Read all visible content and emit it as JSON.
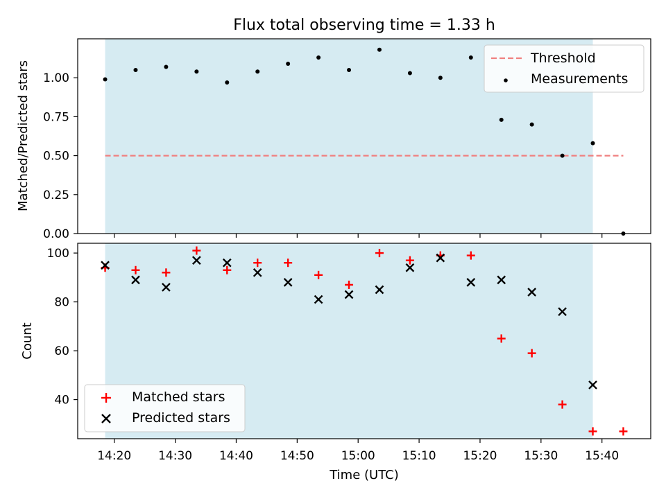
{
  "chart_data": [
    {
      "type": "scatter",
      "title": "Flux total observing time = 1.33 h",
      "xlabel": "",
      "ylabel": "Matched/Predicted stars",
      "ylim": [
        0,
        1.25
      ],
      "y_ticks": [
        "0.00",
        "0.25",
        "0.50",
        "0.75",
        "1.00"
      ],
      "x_tick_labels_shown": false,
      "observing_window": {
        "start": "14:18:30",
        "end": "15:38:30",
        "color": "#add8e6"
      },
      "threshold": {
        "name": "Threshold",
        "value": 0.5,
        "x_range": [
          "14:18:30",
          "15:43:30"
        ],
        "color": "#f08080",
        "style": "dashed"
      },
      "series": [
        {
          "name": "Measurements",
          "marker": "dot",
          "color": "#000000",
          "x": [
            "14:18:30",
            "14:23:30",
            "14:28:30",
            "14:33:30",
            "14:38:30",
            "14:43:30",
            "14:48:30",
            "14:53:30",
            "14:58:30",
            "15:03:30",
            "15:08:30",
            "15:13:30",
            "15:18:30",
            "15:23:30",
            "15:28:30",
            "15:33:30",
            "15:38:30",
            "15:43:30"
          ],
          "y": [
            0.99,
            1.05,
            1.07,
            1.04,
            0.97,
            1.04,
            1.09,
            1.13,
            1.05,
            1.18,
            1.03,
            1.0,
            1.13,
            0.73,
            0.7,
            0.5,
            0.58,
            0.0
          ]
        }
      ],
      "legend": {
        "position": "top-right",
        "entries": [
          "Threshold",
          "Measurements"
        ]
      }
    },
    {
      "type": "scatter",
      "xlabel": "Time (UTC)",
      "ylabel": "Count",
      "ylim": [
        24,
        104
      ],
      "y_ticks": [
        "40",
        "60",
        "80",
        "100"
      ],
      "x_ticks": [
        "14:20",
        "14:30",
        "14:40",
        "14:50",
        "15:00",
        "15:10",
        "15:20",
        "15:30",
        "15:40"
      ],
      "xlim": [
        "14:14:00",
        "15:48:00"
      ],
      "observing_window": {
        "start": "14:18:30",
        "end": "15:38:30",
        "color": "#add8e6"
      },
      "series": [
        {
          "name": "Matched stars",
          "marker": "plus",
          "color": "#ff0000",
          "x": [
            "14:18:30",
            "14:23:30",
            "14:28:30",
            "14:33:30",
            "14:38:30",
            "14:43:30",
            "14:48:30",
            "14:53:30",
            "14:58:30",
            "15:03:30",
            "15:08:30",
            "15:13:30",
            "15:18:30",
            "15:23:30",
            "15:28:30",
            "15:33:30",
            "15:38:30",
            "15:43:30"
          ],
          "y": [
            94,
            93,
            92,
            101,
            93,
            96,
            96,
            91,
            87,
            100,
            97,
            99,
            99,
            65,
            59,
            38,
            27,
            27
          ]
        },
        {
          "name": "Predicted stars",
          "marker": "x",
          "color": "#000000",
          "x": [
            "14:18:30",
            "14:23:30",
            "14:28:30",
            "14:33:30",
            "14:38:30",
            "14:43:30",
            "14:48:30",
            "14:53:30",
            "14:58:30",
            "15:03:30",
            "15:08:30",
            "15:13:30",
            "15:18:30",
            "15:23:30",
            "15:28:30",
            "15:33:30",
            "15:38:30"
          ],
          "y": [
            95,
            89,
            86,
            97,
            96,
            92,
            88,
            81,
            83,
            85,
            94,
            98,
            88,
            89,
            84,
            76,
            46
          ]
        }
      ],
      "legend": {
        "position": "bottom-left",
        "entries": [
          "Matched stars",
          "Predicted stars"
        ]
      }
    }
  ]
}
